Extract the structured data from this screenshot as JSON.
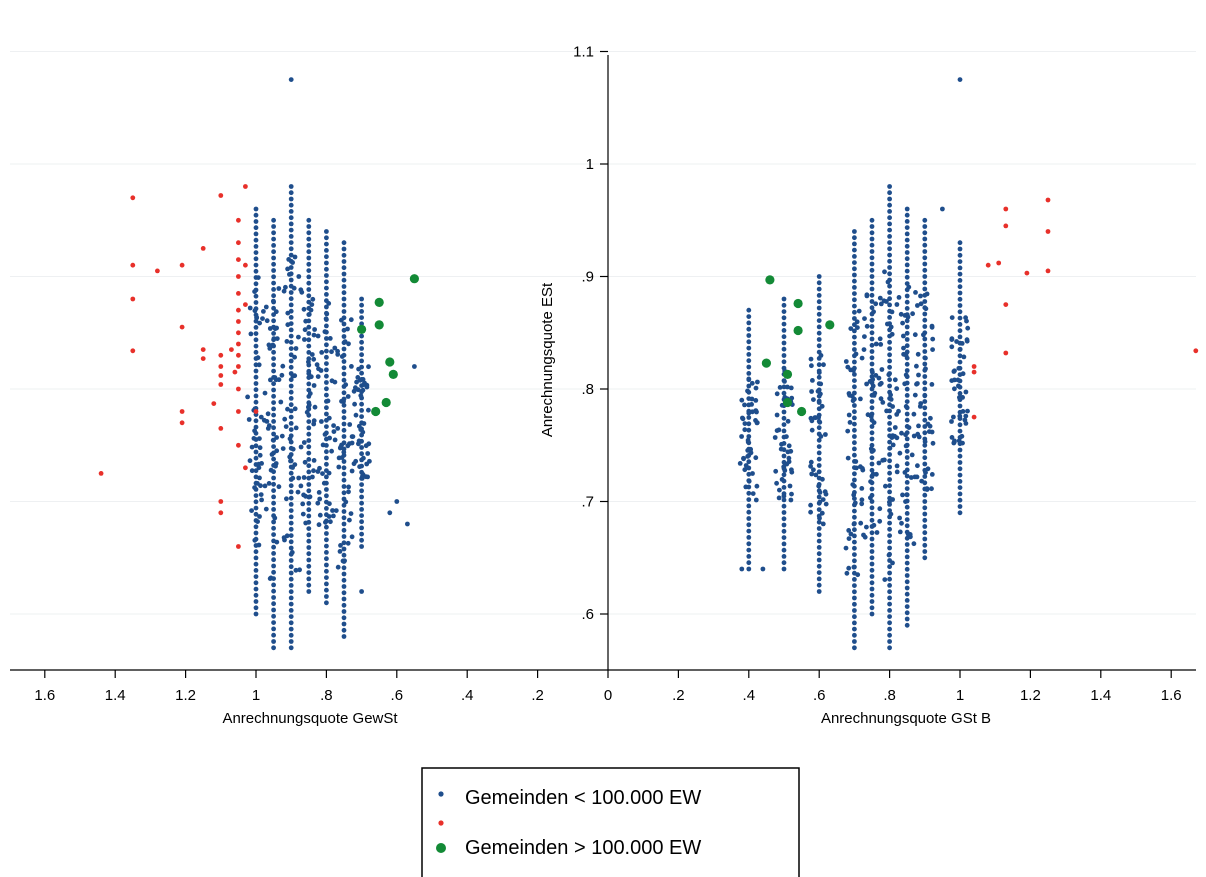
{
  "chart_data": {
    "type": "scatter",
    "title": "",
    "xlabel_left": "Anrechnungsquote GewSt",
    "xlabel_right": "Anrechnungsquote GSt B",
    "ylabel": "Anrechnungsquote ESt",
    "x_ticks": [
      "1.6",
      "1.4",
      "1.2",
      "1",
      "0.8",
      "0.6",
      "0.4",
      "0.2",
      "0",
      "0.2",
      "0.4",
      "0.6",
      "0.8",
      "1",
      "1.2",
      "1.4",
      "1.6"
    ],
    "x_tick_labels": [
      "1.6",
      "1.4",
      "1.2",
      "1",
      ".8",
      ".6",
      ".4",
      ".2",
      "0",
      ".2",
      ".4",
      ".6",
      ".8",
      "1",
      "1.2",
      "1.4",
      "1.6"
    ],
    "y_ticks": [
      0.6,
      0.7,
      0.8,
      0.9,
      1.0,
      1.1
    ],
    "y_tick_labels": [
      ".6",
      ".7",
      ".8",
      ".9",
      "1",
      "1.1"
    ],
    "xlim": [
      -1.7,
      1.7
    ],
    "ylim": [
      0.55,
      1.11
    ],
    "grid": true,
    "legend": {
      "placement": "bottom-center"
    },
    "series": [
      {
        "name": "Gemeinden < 100.000 EW",
        "color": "#1f4e8c",
        "marker": "small",
        "left": {
          "columns": [
            {
              "x": -1.0,
              "ymin": 0.6,
              "ymax": 0.96
            },
            {
              "x": -0.95,
              "ymin": 0.57,
              "ymax": 0.95
            },
            {
              "x": -0.9,
              "ymin": 0.57,
              "ymax": 0.98
            },
            {
              "x": -0.85,
              "ymin": 0.62,
              "ymax": 0.95
            },
            {
              "x": -0.8,
              "ymin": 0.61,
              "ymax": 0.94
            },
            {
              "x": -0.75,
              "ymin": 0.58,
              "ymax": 0.93
            },
            {
              "x": -0.7,
              "ymin": 0.66,
              "ymax": 0.88
            }
          ],
          "points": [
            [
              -0.9,
              1.075
            ],
            [
              -0.55,
              0.82
            ],
            [
              -0.6,
              0.7
            ],
            [
              -0.62,
              0.69
            ],
            [
              -0.57,
              0.68
            ],
            [
              -0.7,
              0.62
            ]
          ]
        },
        "right": {
          "columns": [
            {
              "x": 0.4,
              "ymin": 0.64,
              "ymax": 0.87
            },
            {
              "x": 0.5,
              "ymin": 0.64,
              "ymax": 0.88
            },
            {
              "x": 0.6,
              "ymin": 0.62,
              "ymax": 0.9
            },
            {
              "x": 0.7,
              "ymin": 0.57,
              "ymax": 0.94
            },
            {
              "x": 0.75,
              "ymin": 0.6,
              "ymax": 0.95
            },
            {
              "x": 0.8,
              "ymin": 0.57,
              "ymax": 0.98
            },
            {
              "x": 0.85,
              "ymin": 0.59,
              "ymax": 0.96
            },
            {
              "x": 0.9,
              "ymin": 0.65,
              "ymax": 0.95
            },
            {
              "x": 1.0,
              "ymin": 0.69,
              "ymax": 0.93
            }
          ],
          "points": [
            [
              1.0,
              1.075
            ],
            [
              0.38,
              0.79
            ],
            [
              0.38,
              0.64
            ],
            [
              0.44,
              0.64
            ],
            [
              0.95,
              0.96
            ]
          ]
        }
      },
      {
        "name": "",
        "color": "#e8302a",
        "marker": "small",
        "left": {
          "points": [
            [
              -1.35,
              0.97
            ],
            [
              -1.35,
              0.91
            ],
            [
              -1.35,
              0.88
            ],
            [
              -1.35,
              0.834
            ],
            [
              -1.28,
              0.905
            ],
            [
              -1.21,
              0.91
            ],
            [
              -1.21,
              0.855
            ],
            [
              -1.21,
              0.78
            ],
            [
              -1.21,
              0.77
            ],
            [
              -1.15,
              0.925
            ],
            [
              -1.15,
              0.835
            ],
            [
              -1.15,
              0.827
            ],
            [
              -1.12,
              0.787
            ],
            [
              -1.1,
              0.972
            ],
            [
              -1.1,
              0.83
            ],
            [
              -1.1,
              0.82
            ],
            [
              -1.1,
              0.812
            ],
            [
              -1.1,
              0.804
            ],
            [
              -1.1,
              0.765
            ],
            [
              -1.1,
              0.7
            ],
            [
              -1.1,
              0.69
            ],
            [
              -1.07,
              0.835
            ],
            [
              -1.06,
              0.815
            ],
            [
              -1.05,
              0.95
            ],
            [
              -1.05,
              0.93
            ],
            [
              -1.05,
              0.915
            ],
            [
              -1.05,
              0.9
            ],
            [
              -1.05,
              0.885
            ],
            [
              -1.05,
              0.87
            ],
            [
              -1.05,
              0.86
            ],
            [
              -1.05,
              0.85
            ],
            [
              -1.05,
              0.84
            ],
            [
              -1.05,
              0.83
            ],
            [
              -1.05,
              0.82
            ],
            [
              -1.05,
              0.8
            ],
            [
              -1.05,
              0.78
            ],
            [
              -1.05,
              0.75
            ],
            [
              -1.05,
              0.66
            ],
            [
              -1.03,
              0.98
            ],
            [
              -1.03,
              0.91
            ],
            [
              -1.03,
              0.875
            ],
            [
              -1.03,
              0.73
            ],
            [
              -1.0,
              0.78
            ],
            [
              -1.44,
              0.725
            ]
          ]
        },
        "right": {
          "points": [
            [
              1.04,
              0.82
            ],
            [
              1.04,
              0.815
            ],
            [
              1.04,
              0.775
            ],
            [
              1.08,
              0.91
            ],
            [
              1.11,
              0.912
            ],
            [
              1.13,
              0.96
            ],
            [
              1.13,
              0.945
            ],
            [
              1.13,
              0.875
            ],
            [
              1.13,
              0.832
            ],
            [
              1.19,
              0.903
            ],
            [
              1.25,
              0.968
            ],
            [
              1.25,
              0.94
            ],
            [
              1.25,
              0.905
            ],
            [
              1.67,
              0.834
            ]
          ]
        }
      },
      {
        "name": "Gemeinden > 100.000 EW",
        "color": "#138a36",
        "marker": "large",
        "left": {
          "points": [
            [
              -0.55,
              0.898
            ],
            [
              -0.65,
              0.877
            ],
            [
              -0.65,
              0.857
            ],
            [
              -0.7,
              0.853
            ],
            [
              -0.62,
              0.824
            ],
            [
              -0.61,
              0.813
            ],
            [
              -0.63,
              0.788
            ],
            [
              -0.66,
              0.78
            ]
          ]
        },
        "right": {
          "points": [
            [
              0.46,
              0.897
            ],
            [
              0.54,
              0.876
            ],
            [
              0.54,
              0.852
            ],
            [
              0.63,
              0.857
            ],
            [
              0.45,
              0.823
            ],
            [
              0.51,
              0.813
            ],
            [
              0.51,
              0.788
            ],
            [
              0.55,
              0.78
            ]
          ]
        }
      }
    ]
  },
  "legend": {
    "items": [
      {
        "label": "Gemeinden < 100.000 EW",
        "color": "#1f4e8c",
        "marker": "small"
      },
      {
        "label": "",
        "color": "#e8302a",
        "marker": "small"
      },
      {
        "label": "Gemeinden > 100.000 EW",
        "color": "#138a36",
        "marker": "large"
      }
    ]
  }
}
